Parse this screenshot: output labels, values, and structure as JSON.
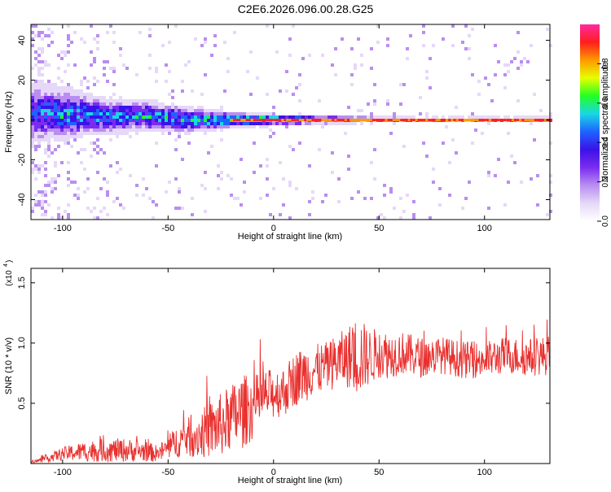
{
  "title": "C2E6.2026.096.00.28.G25",
  "colors": {
    "snr_line": "#e8302e",
    "axis": "#000000",
    "spectrogram_colormap": [
      "#ffffff",
      "#e6d8f8",
      "#b98ef0",
      "#7b2cf0",
      "#3a12e8",
      "#1f63ff",
      "#19d7e6",
      "#22ff22",
      "#e6ff00",
      "#ff9900",
      "#ff1e1e",
      "#ff2aa0"
    ]
  },
  "chart_data": [
    {
      "type": "heatmap",
      "name": "spectrogram",
      "xlabel": "Height of straight line (km)",
      "ylabel": "Frequency (Hz)",
      "xlim": [
        -115,
        131
      ],
      "ylim": [
        -50,
        48
      ],
      "x_ticks": [
        -100,
        -50,
        0,
        50,
        100
      ],
      "x_tick_labels": [
        "-100",
        "-50",
        "0",
        "50",
        "100"
      ],
      "y_ticks": [
        -40,
        -20,
        0,
        20,
        40
      ],
      "y_tick_labels": [
        "-40",
        "-20",
        "0",
        "20",
        "40"
      ],
      "colorbar": {
        "label": "Normalized spectral amplitude",
        "range": [
          0,
          1
        ],
        "ticks": [
          0.0,
          0.2,
          0.4,
          0.6,
          0.8
        ],
        "tick_labels": [
          "0.0",
          "0.2",
          "0.4",
          "0.6",
          "0.8"
        ]
      },
      "ridge": {
        "x": [
          -115,
          -100,
          -80,
          -60,
          -40,
          -20,
          0,
          20,
          40,
          60,
          80,
          100,
          131
        ],
        "center_hz": [
          4,
          3,
          2,
          2,
          0,
          0,
          0,
          0,
          0,
          0,
          0,
          0,
          0
        ],
        "halfwidth_hz": [
          12,
          10,
          7,
          6,
          5,
          3,
          2,
          1.5,
          1.2,
          1,
          1,
          1,
          1
        ],
        "peak_amplitude": [
          0.45,
          0.55,
          0.5,
          0.55,
          0.55,
          0.8,
          0.9,
          0.9,
          0.95,
          0.95,
          0.95,
          0.95,
          0.95
        ]
      },
      "grid": false
    },
    {
      "type": "line",
      "name": "snr",
      "xlabel": "Height of straight line (km)",
      "ylabel": "SNR (10 * v/v)",
      "y_multiplier_label": "(x10",
      "y_multiplier_exp": "4",
      "xlim": [
        -115,
        131
      ],
      "ylim": [
        0,
        1.62
      ],
      "x_ticks": [
        -100,
        -50,
        0,
        50,
        100
      ],
      "x_tick_labels": [
        "-100",
        "-50",
        "0",
        "50",
        "100"
      ],
      "y_ticks": [
        0.5,
        1.0,
        1.5
      ],
      "y_tick_labels": [
        "0.5",
        "1.0",
        "1.5"
      ],
      "envelope": {
        "x": [
          -115,
          -110,
          -100,
          -90,
          -80,
          -70,
          -60,
          -55,
          -50,
          -45,
          -40,
          -35,
          -30,
          -25,
          -20,
          -15,
          -10,
          -5,
          0,
          5,
          10,
          15,
          20,
          25,
          30,
          35,
          40,
          45,
          50,
          55,
          60,
          70,
          80,
          90,
          100,
          110,
          120,
          131
        ],
        "mean": [
          0.01,
          0.03,
          0.08,
          0.1,
          0.11,
          0.11,
          0.1,
          0.08,
          0.13,
          0.19,
          0.22,
          0.24,
          0.28,
          0.32,
          0.38,
          0.43,
          0.46,
          0.55,
          0.58,
          0.6,
          0.7,
          0.75,
          0.78,
          0.8,
          0.85,
          0.88,
          0.9,
          0.88,
          0.92,
          0.9,
          0.92,
          0.88,
          0.9,
          0.86,
          0.86,
          0.9,
          0.88,
          0.9
        ],
        "spread": [
          0.01,
          0.03,
          0.08,
          0.12,
          0.14,
          0.14,
          0.12,
          0.1,
          0.14,
          0.2,
          0.24,
          0.28,
          0.34,
          0.38,
          0.4,
          0.45,
          0.38,
          0.32,
          0.3,
          0.3,
          0.32,
          0.34,
          0.3,
          0.3,
          0.32,
          0.36,
          0.5,
          0.34,
          0.3,
          0.28,
          0.26,
          0.24,
          0.22,
          0.22,
          0.22,
          0.22,
          0.22,
          0.24
        ]
      },
      "grid": false
    }
  ]
}
